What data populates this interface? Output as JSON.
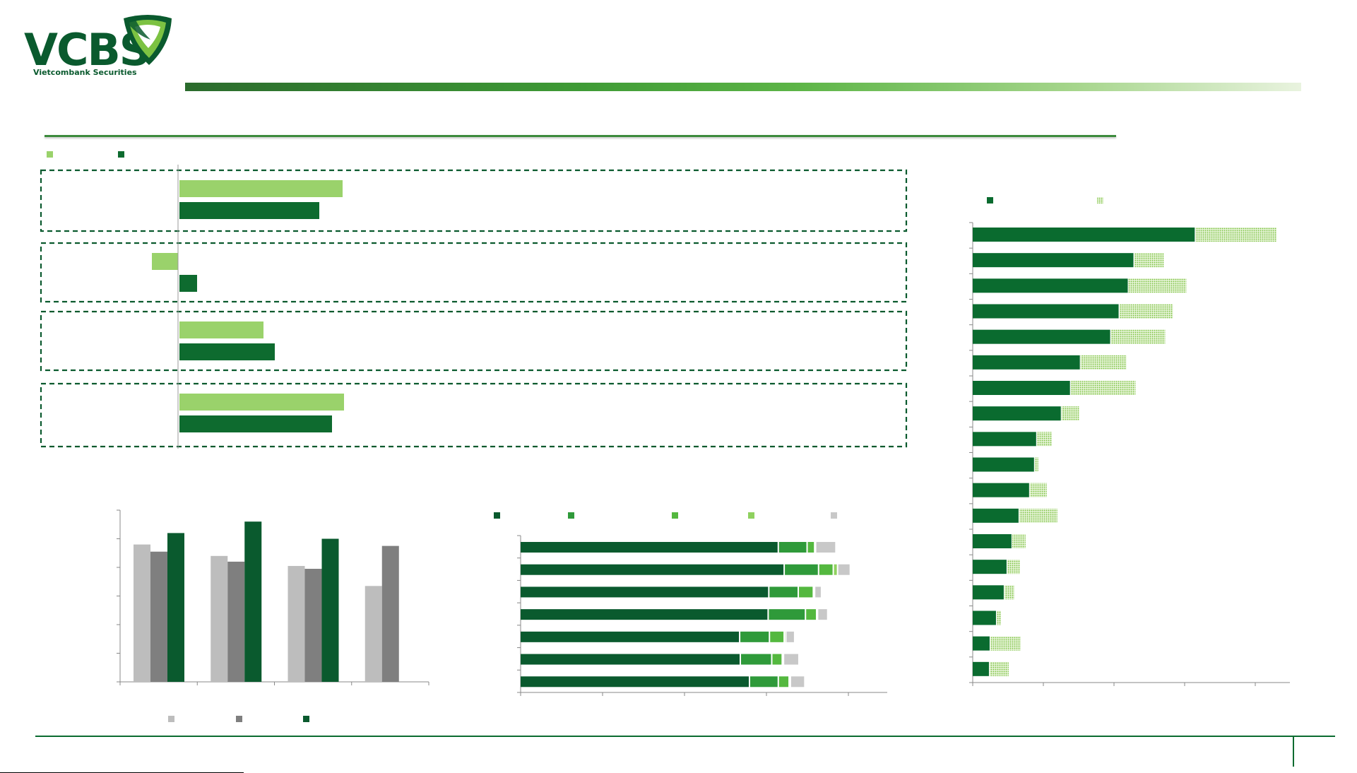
{
  "brand": {
    "name": "VCBS",
    "tagline": "Vietcombank Securities",
    "colors": {
      "dark_green": "#0a5a2e",
      "mid_green": "#3e9a35",
      "light_green": "#9ad26b"
    }
  },
  "footer": {
    "source_note": ""
  },
  "chart_data": [
    {
      "type": "bar",
      "orientation": "horizontal",
      "groups": 4,
      "legend_swatches": 2,
      "series": [
        {
          "color": "#9ad26b",
          "values": [
            231,
            -37,
            119,
            233
          ]
        },
        {
          "color": "#0e6b2f",
          "values": [
            198,
            25,
            135,
            216
          ]
        }
      ],
      "grouped_in_dashed_boxes": true
    },
    {
      "type": "bar",
      "orientation": "vertical",
      "categories": 4,
      "legend_swatches": 3,
      "series": [
        {
          "color": "#bdbdbd",
          "values": [
            4.8,
            4.4,
            4.05,
            3.35
          ]
        },
        {
          "color": "#7f7f7f",
          "values": [
            4.55,
            4.2,
            3.95,
            4.75
          ]
        },
        {
          "color": "#0a5a2e",
          "values": [
            5.2,
            5.6,
            5.0,
            null
          ]
        }
      ],
      "ylim": [
        0,
        6
      ],
      "y_ticks": 7,
      "legend_placement": "bottom"
    },
    {
      "type": "bar",
      "orientation": "horizontal",
      "stacked": true,
      "legend_swatches": 5,
      "legend_placement": "top",
      "series": [
        {
          "color": "#0a5a2e",
          "values": [
            78.5,
            80.3,
            75.6,
            75.4,
            66.7,
            66.9,
            69.7
          ]
        },
        {
          "color": "#2f9a3a",
          "values": [
            8.8,
            10.5,
            9.0,
            11.4,
            9.1,
            9.6,
            8.8
          ]
        },
        {
          "color": "#54b83f",
          "values": [
            2.3,
            4.5,
            4.6,
            3.4,
            4.5,
            3.2,
            3.3
          ]
        },
        {
          "color": "#8fd15f",
          "values": [
            0.3,
            1.3,
            0.4,
            0.3,
            0.5,
            0.4,
            0.4
          ]
        },
        {
          "color": "#c8c8c8",
          "values": [
            6.2,
            3.9,
            2.1,
            3.1,
            2.7,
            4.7,
            4.4
          ]
        }
      ],
      "xlim": [
        0,
        112
      ],
      "x_ticks": 5,
      "y_ticks": 8
    },
    {
      "type": "bar",
      "orientation": "horizontal",
      "stacked": true,
      "legend_swatches": 2,
      "legend_placement": "top",
      "series": [
        {
          "color": "#0a6b2f",
          "values": [
            3.15,
            2.28,
            2.2,
            2.07,
            1.95,
            1.52,
            1.38,
            1.25,
            0.9,
            0.87,
            0.8,
            0.65,
            0.55,
            0.48,
            0.44,
            0.33,
            0.24,
            0.23
          ]
        },
        {
          "color": "#9ad26b",
          "pattern": "dotted",
          "values": [
            1.16,
            0.43,
            0.83,
            0.77,
            0.78,
            0.66,
            0.93,
            0.26,
            0.22,
            0.06,
            0.25,
            0.55,
            0.2,
            0.19,
            0.15,
            0.07,
            0.44,
            0.28
          ]
        }
      ],
      "xlim": [
        0,
        4.5
      ],
      "x_ticks": 5,
      "y_ticks": 19
    }
  ]
}
